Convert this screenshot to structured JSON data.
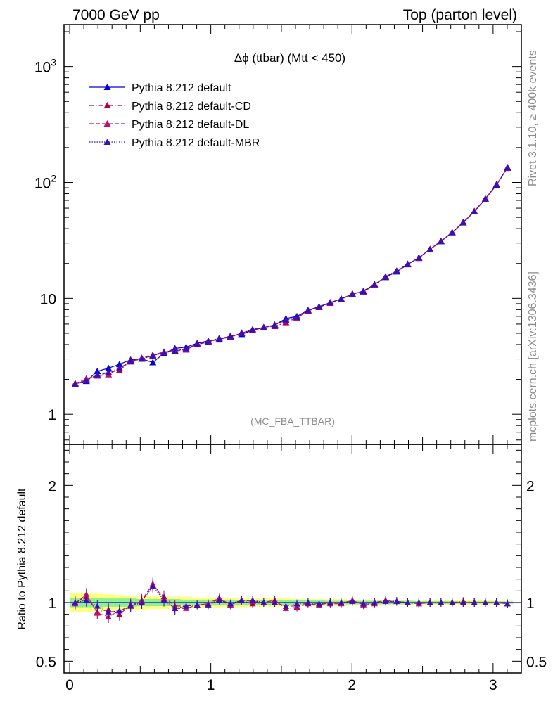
{
  "header": {
    "left": "7000 GeV pp",
    "right": "Top (parton level)"
  },
  "side_text": {
    "rivet": "Rivet 3.1.10, ≥ 400k events",
    "mcplots": "mcplots.cern.ch [arXiv:1306.3436]"
  },
  "colors": {
    "default": "#0000dd",
    "cd": "#b00050",
    "dl": "#c0106e",
    "mbr": "#3a10b0",
    "band_green": "#8ff08f",
    "band_yellow": "#ffff80"
  },
  "chart_data": [
    {
      "type": "line",
      "title": "Δϕ (ttbar) (Mtt < 450)",
      "watermark": "(MC_FBA_TTBAR)",
      "yscale": "log",
      "xlim": [
        -0.04,
        3.2
      ],
      "ylim": [
        0.55,
        2300
      ],
      "yticks": [
        {
          "value": 1,
          "label": "1"
        },
        {
          "value": 10,
          "label": "10"
        },
        {
          "value": 100,
          "label": "10^2"
        },
        {
          "value": 1000,
          "label": "10^3"
        }
      ],
      "legend_position": "top-left",
      "x": [
        0.039,
        0.118,
        0.196,
        0.275,
        0.353,
        0.432,
        0.511,
        0.589,
        0.668,
        0.746,
        0.825,
        0.903,
        0.982,
        1.06,
        1.139,
        1.218,
        1.296,
        1.375,
        1.453,
        1.532,
        1.61,
        1.689,
        1.767,
        1.846,
        1.924,
        2.003,
        2.081,
        2.16,
        2.238,
        2.317,
        2.395,
        2.474,
        2.553,
        2.631,
        2.71,
        2.788,
        2.867,
        2.945,
        3.024,
        3.102
      ],
      "series": [
        {
          "name": "Pythia 8.212 default",
          "style": "solid",
          "color_key": "default",
          "values": [
            1.83,
            1.93,
            2.35,
            2.5,
            2.7,
            2.95,
            3.0,
            2.8,
            3.35,
            3.7,
            3.8,
            4.1,
            4.3,
            4.4,
            4.75,
            4.9,
            5.3,
            5.6,
            5.9,
            6.7,
            7.0,
            7.9,
            8.5,
            9.2,
            9.9,
            10.8,
            11.6,
            13.2,
            15.2,
            17.0,
            19.6,
            22.5,
            26.5,
            31.0,
            37.0,
            45.0,
            56.0,
            72.0,
            95.0,
            135.0
          ]
        },
        {
          "name": "Pythia 8.212 default-CD",
          "style": "dash-dot",
          "color_key": "cd",
          "values": [
            1.85,
            2.0,
            2.15,
            2.3,
            2.4,
            2.9,
            3.05,
            3.2,
            3.45,
            3.5,
            3.65,
            4.05,
            4.25,
            4.5,
            4.6,
            5.05,
            5.3,
            5.65,
            5.75,
            6.2,
            6.8,
            7.8,
            8.4,
            9.2,
            9.9,
            10.9,
            11.5,
            13.2,
            15.4,
            17.3,
            19.8,
            22.2,
            26.5,
            31.2,
            37.0,
            45.5,
            56.5,
            72.0,
            96.0,
            133.0
          ]
        },
        {
          "name": "Pythia 8.212 default-DL",
          "style": "dashed",
          "color_key": "dl",
          "values": [
            1.82,
            2.03,
            2.15,
            2.2,
            2.5,
            2.85,
            3.05,
            3.25,
            3.45,
            3.55,
            3.6,
            4.0,
            4.2,
            4.55,
            4.65,
            5.0,
            5.4,
            5.6,
            5.9,
            6.5,
            6.8,
            7.9,
            8.4,
            9.1,
            9.8,
            11.0,
            11.4,
            13.0,
            15.4,
            17.2,
            19.7,
            22.3,
            26.6,
            31.2,
            37.2,
            45.2,
            56.4,
            72.5,
            96.0,
            134.0
          ]
        },
        {
          "name": "Pythia 8.212 default-MBR",
          "style": "dotted",
          "color_key": "mbr",
          "values": [
            1.83,
            1.95,
            2.2,
            2.3,
            2.5,
            2.85,
            3.0,
            3.2,
            3.4,
            3.5,
            3.7,
            4.0,
            4.2,
            4.5,
            4.7,
            5.0,
            5.4,
            5.6,
            5.9,
            6.5,
            6.9,
            7.9,
            8.4,
            9.2,
            9.9,
            10.9,
            11.5,
            13.2,
            15.3,
            17.2,
            19.7,
            22.4,
            26.5,
            31.1,
            37.0,
            45.2,
            56.3,
            72.2,
            95.8,
            134.2
          ]
        }
      ]
    },
    {
      "type": "line",
      "ylabel": "Ratio to Pythia 8.212 default",
      "xlabel": "",
      "xlim": [
        -0.04,
        3.2
      ],
      "ylim": [
        0.4,
        2.35
      ],
      "xticks": [
        {
          "value": 0,
          "label": "0"
        },
        {
          "value": 1,
          "label": "1"
        },
        {
          "value": 2,
          "label": "2"
        },
        {
          "value": 3,
          "label": "3"
        }
      ],
      "yticks": [
        {
          "value": 0.5,
          "label": "0.5"
        },
        {
          "value": 1,
          "label": "1"
        },
        {
          "value": 2,
          "label": "2"
        }
      ],
      "reference_line": 1,
      "band_green_halfwidth": [
        0.04,
        0.04,
        0.04,
        0.035,
        0.035,
        0.035,
        0.03,
        0.03,
        0.03,
        0.03,
        0.025,
        0.025,
        0.025,
        0.025,
        0.025,
        0.02,
        0.02,
        0.02,
        0.02,
        0.02,
        0.02,
        0.02,
        0.02,
        0.015,
        0.015,
        0.015,
        0.015,
        0.015,
        0.015,
        0.015,
        0.015,
        0.012,
        0.012,
        0.012,
        0.012,
        0.01,
        0.01,
        0.01,
        0.01,
        0.01
      ],
      "band_yellow_halfwidth": [
        0.08,
        0.08,
        0.075,
        0.07,
        0.065,
        0.06,
        0.06,
        0.055,
        0.055,
        0.05,
        0.05,
        0.045,
        0.045,
        0.04,
        0.04,
        0.04,
        0.035,
        0.035,
        0.035,
        0.035,
        0.03,
        0.03,
        0.03,
        0.03,
        0.03,
        0.025,
        0.025,
        0.025,
        0.025,
        0.025,
        0.02,
        0.02,
        0.02,
        0.02,
        0.02,
        0.02,
        0.02,
        0.02,
        0.015,
        0.015
      ],
      "series": [
        {
          "name": "Pythia 8.212 default-CD",
          "style": "dash-dot",
          "color_key": "cd",
          "values": [
            1.0,
            1.05,
            0.92,
            0.94,
            0.9,
            0.98,
            1.01,
            1.15,
            1.05,
            0.97,
            0.97,
            0.98,
            0.99,
            1.03,
            0.98,
            1.02,
            0.99,
            1.0,
            1.02,
            0.95,
            0.96,
            0.99,
            0.98,
            1.0,
            1.0,
            1.01,
            0.99,
            1.0,
            1.02,
            1.01,
            1.0,
            0.99,
            1.0,
            1.0,
            1.0,
            1.01,
            1.0,
            1.0,
            1.0,
            0.99
          ]
        },
        {
          "name": "Pythia 8.212 default-DL",
          "style": "dashed",
          "color_key": "dl",
          "values": [
            0.99,
            1.07,
            0.91,
            0.88,
            0.93,
            0.97,
            1.02,
            1.16,
            1.03,
            0.95,
            0.95,
            0.98,
            0.99,
            1.04,
            0.98,
            1.02,
            1.01,
            1.0,
            1.0,
            0.97,
            0.97,
            1.0,
            0.99,
            0.99,
            0.99,
            1.02,
            0.98,
            0.99,
            1.01,
            1.01,
            1.0,
            0.99,
            1.0,
            1.0,
            1.0,
            1.0,
            1.0,
            1.0,
            1.0,
            0.99
          ]
        },
        {
          "name": "Pythia 8.212 default-MBR",
          "style": "dotted",
          "color_key": "mbr",
          "values": [
            1.0,
            1.02,
            0.97,
            0.92,
            0.93,
            0.97,
            1.0,
            1.14,
            1.02,
            0.95,
            0.97,
            0.98,
            0.98,
            1.02,
            0.99,
            1.02,
            1.02,
            1.0,
            1.0,
            0.97,
            0.99,
            1.0,
            0.99,
            1.0,
            1.0,
            1.01,
            0.99,
            1.0,
            1.01,
            1.01,
            1.0,
            1.0,
            1.0,
            1.0,
            1.0,
            1.0,
            1.0,
            1.0,
            1.0,
            0.99
          ]
        }
      ]
    }
  ]
}
